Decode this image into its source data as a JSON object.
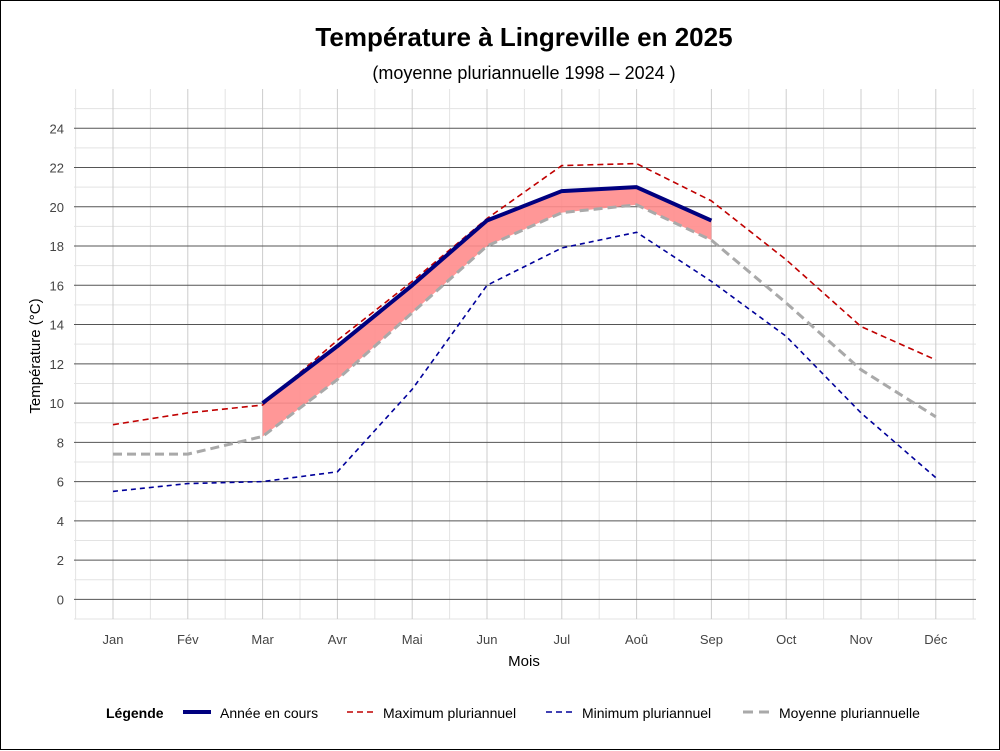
{
  "chart_data": {
    "type": "line",
    "title": "Température à Lingreville en 2025",
    "subtitle": "(moyenne pluriannuelle 1998 – 2024 )",
    "xlabel": "Mois",
    "ylabel": "Température (°C)",
    "categories": [
      "Jan",
      "Fév",
      "Mar",
      "Avr",
      "Mai",
      "Jun",
      "Jul",
      "Aoû",
      "Sep",
      "Oct",
      "Nov",
      "Déc"
    ],
    "ylim": [
      -1,
      26
    ],
    "yticks": [
      0,
      2,
      4,
      6,
      8,
      10,
      12,
      14,
      16,
      18,
      20,
      22,
      24
    ],
    "grid": true,
    "legend_position": "bottom",
    "legend_title": "Légende",
    "series": [
      {
        "name": "Année en cours",
        "key": "current",
        "color": "#00007f",
        "values": [
          null,
          null,
          10.0,
          12.9,
          16.0,
          19.3,
          20.8,
          21.0,
          19.3,
          null,
          null,
          null
        ]
      },
      {
        "name": "Maximum pluriannuel",
        "key": "max",
        "color": "#c00000",
        "values": [
          8.9,
          9.5,
          9.9,
          13.2,
          16.2,
          19.4,
          22.1,
          22.2,
          20.3,
          17.3,
          13.9,
          12.2
        ]
      },
      {
        "name": "Minimum pluriannuel",
        "key": "min",
        "color": "#00009a",
        "values": [
          5.5,
          5.9,
          6.0,
          6.5,
          10.7,
          16.0,
          17.9,
          18.7,
          16.2,
          13.4,
          9.5,
          6.2
        ]
      },
      {
        "name": "Moyenne pluriannuelle",
        "key": "mean",
        "color": "#a9a9a9",
        "values": [
          7.4,
          7.4,
          8.3,
          11.2,
          14.6,
          18.0,
          19.7,
          20.1,
          18.3,
          15.1,
          11.7,
          9.3
        ]
      }
    ],
    "fill_between": {
      "upper": "current",
      "lower": "mean",
      "color": "#ff8c8c"
    }
  }
}
